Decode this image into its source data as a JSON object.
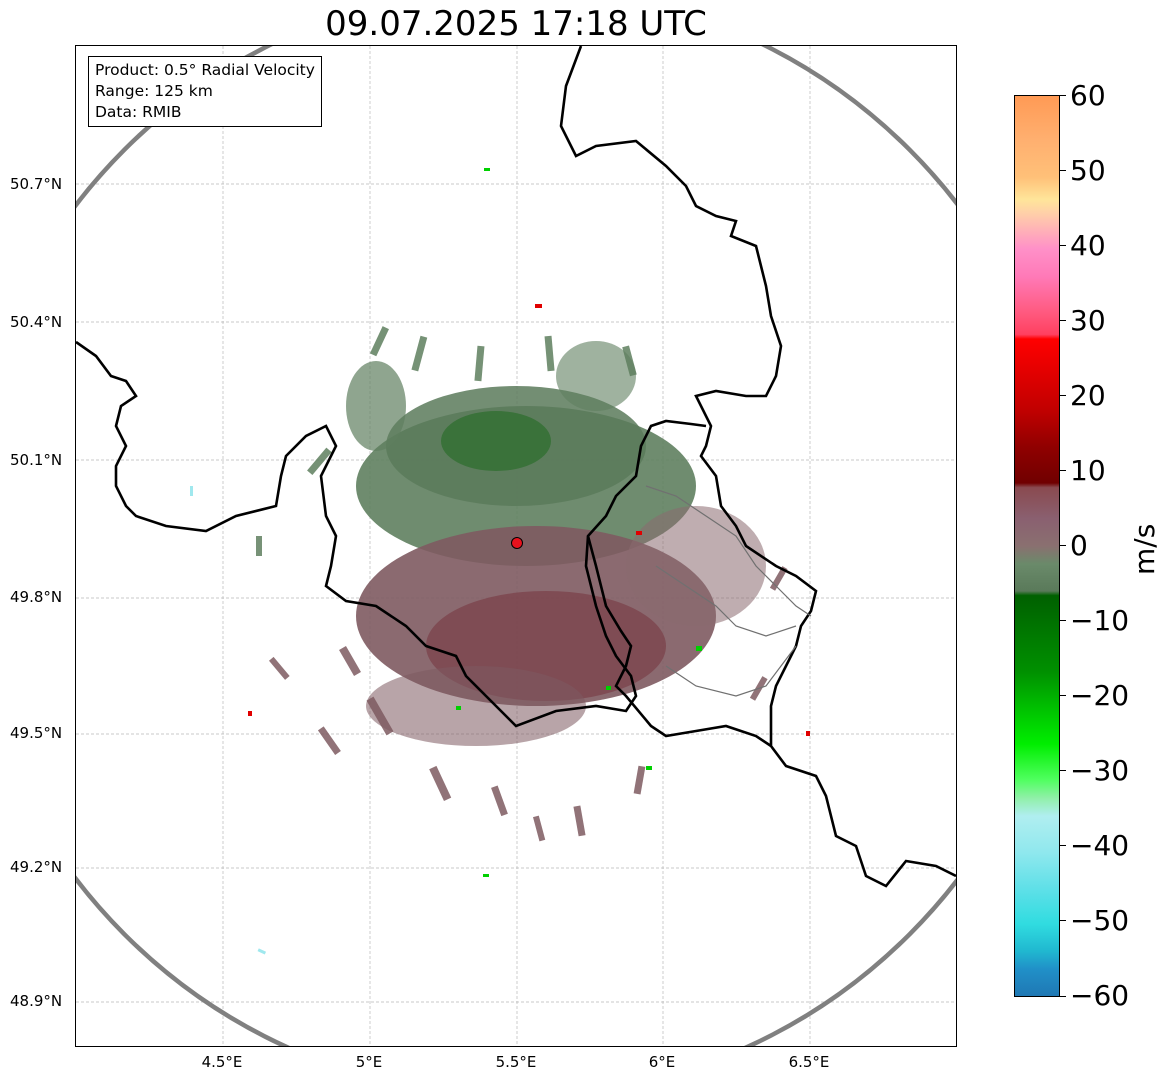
{
  "title": "09.07.2025 17:18 UTC",
  "info": {
    "product": "Product: 0.5° Radial Velocity",
    "range": "Range: 125 km",
    "data": "Data: RMIB"
  },
  "lat_labels": [
    "50.7°N",
    "50.4°N",
    "50.1°N",
    "49.8°N",
    "49.5°N",
    "49.2°N",
    "48.9°N"
  ],
  "lon_labels": [
    "4.5°E",
    "5°E",
    "5.5°E",
    "6°E",
    "6.5°E"
  ],
  "colorbar": {
    "unit": "m/s",
    "ticks": [
      "60",
      "50",
      "40",
      "30",
      "20",
      "10",
      "0",
      "−10",
      "−20",
      "−30",
      "−40",
      "−50",
      "−60"
    ],
    "colors": {
      "approaching_strong": "#1f78b4",
      "approaching_cyan": "#2ee0e0",
      "approaching_light": "#b0eef0",
      "approaching_green": "#00e000",
      "approaching_dark_green": "#006400",
      "near_zero_green": "#5a7a5a",
      "near_zero_grey": "#8a7070",
      "receding_maroon": "#7a0000",
      "receding_red": "#ff0000",
      "receding_pink": "#ff80c0",
      "receding_peach": "#ffe090",
      "receding_orange": "#ffa060"
    }
  },
  "radar_site": {
    "lat": 49.91,
    "lon": 5.51,
    "color": "#e8121e"
  }
}
